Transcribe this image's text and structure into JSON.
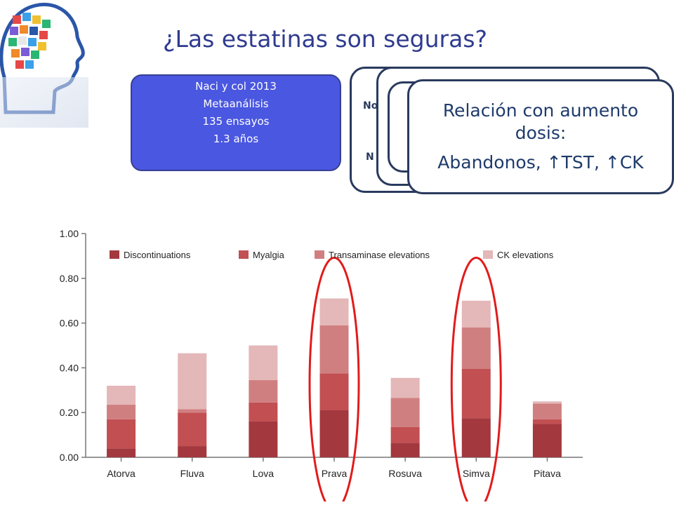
{
  "slide": {
    "title": "¿Las estatinas son seguras?",
    "info": {
      "line1": "Naci  y col 2013",
      "line2": "Metaanálisis",
      "line3": "135 ensayos",
      "line4": "1.3 años"
    },
    "card_peek_1": "No",
    "card_peek_2": "N",
    "card_top": {
      "line1": "Relación con aumento",
      "line2": "dosis:",
      "line3": "Abandonos, ↑TST, ↑CK"
    },
    "colors": {
      "title": "#2f3b8f",
      "info_box": "#4a57e0",
      "card_text": "#1f3b6b",
      "highlight": "#e21b1b"
    },
    "highlighted_categories": [
      "Prava",
      "Simva"
    ]
  },
  "chart_data": {
    "type": "bar",
    "stacked": true,
    "categories": [
      "Atorva",
      "Fluva",
      "Lova",
      "Prava",
      "Rosuva",
      "Simva",
      "Pitava"
    ],
    "series": [
      {
        "name": "Discontinuations",
        "color": "#a3383e",
        "values": [
          0.04,
          0.05,
          0.16,
          0.21,
          0.065,
          0.175,
          0.15
        ]
      },
      {
        "name": "Myalgia",
        "color": "#c24f52",
        "values": [
          0.13,
          0.15,
          0.085,
          0.165,
          0.07,
          0.22,
          0.02
        ]
      },
      {
        "name": "Transaminase elevations",
        "color": "#d07f80",
        "values": [
          0.065,
          0.015,
          0.1,
          0.215,
          0.13,
          0.185,
          0.07
        ]
      },
      {
        "name": "CK elevations",
        "color": "#e4b7b8",
        "values": [
          0.085,
          0.25,
          0.155,
          0.12,
          0.09,
          0.12,
          0.01
        ]
      }
    ],
    "yticks": [
      "0.00",
      "0.20",
      "0.40",
      "0.60",
      "0.80",
      "1.00"
    ],
    "ylim": [
      0,
      1.0
    ],
    "legend_position": "top",
    "grid": false
  }
}
